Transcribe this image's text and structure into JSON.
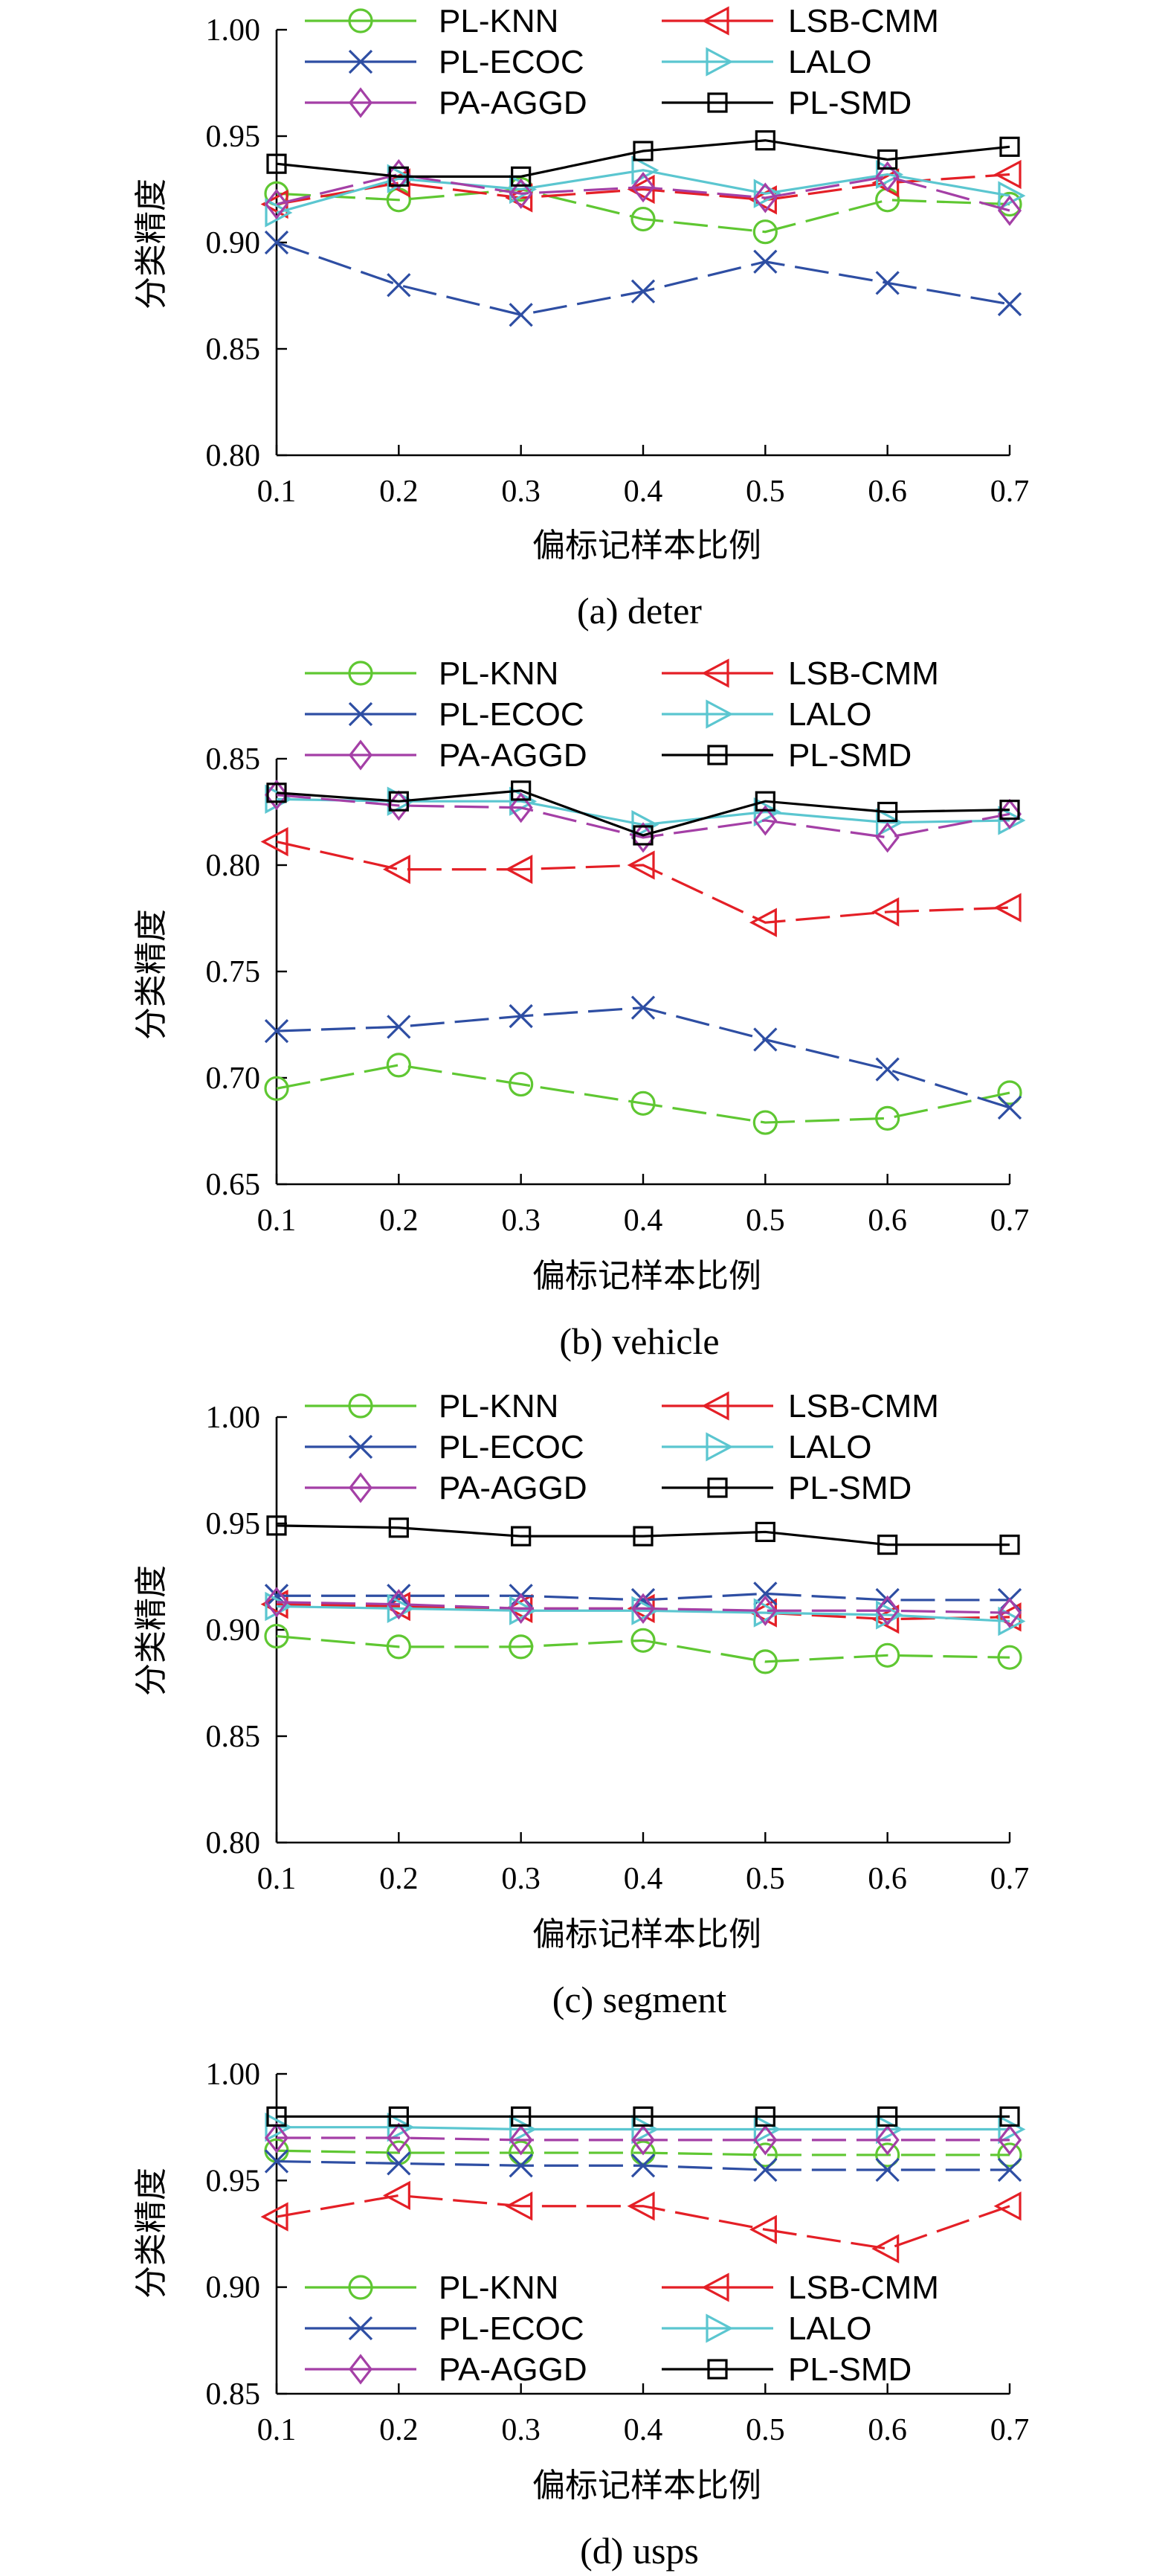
{
  "chart_data": [
    {
      "type": "line",
      "caption": "(a) deter",
      "xlabel": "偏标记样本比例",
      "ylabel": "分类精度",
      "x": [
        0.1,
        0.2,
        0.3,
        0.4,
        0.5,
        0.6,
        0.7
      ],
      "xticks": [
        "0.1",
        "0.2",
        "0.3",
        "0.4",
        "0.5",
        "0.6",
        "0.7"
      ],
      "xlim": [
        0.1,
        0.7
      ],
      "ylim": [
        0.8,
        1.0
      ],
      "yticks": [
        "0.80",
        "0.85",
        "0.90",
        "0.95",
        "1.00"
      ],
      "legend_position": "top",
      "series": [
        {
          "name": "PL-KNN",
          "color": "#5fc732",
          "marker": "circle",
          "dash": "long",
          "values": [
            0.923,
            0.92,
            0.925,
            0.911,
            0.905,
            0.92,
            0.918
          ]
        },
        {
          "name": "LSB-CMM",
          "color": "#e41f26",
          "marker": "triangle-left",
          "dash": "long",
          "values": [
            0.918,
            0.928,
            0.921,
            0.925,
            0.92,
            0.928,
            0.932
          ]
        },
        {
          "name": "PL-ECOC",
          "color": "#2e4ea3",
          "marker": "x",
          "dash": "long",
          "values": [
            0.9,
            0.88,
            0.866,
            0.877,
            0.891,
            0.881,
            0.871
          ]
        },
        {
          "name": "LALO",
          "color": "#5bc6d0",
          "marker": "triangle-right",
          "dash": "solid",
          "values": [
            0.914,
            0.93,
            0.925,
            0.934,
            0.923,
            0.932,
            0.922
          ]
        },
        {
          "name": "PA-AGGD",
          "color": "#a43fa6",
          "marker": "diamond",
          "dash": "long",
          "values": [
            0.918,
            0.932,
            0.923,
            0.926,
            0.921,
            0.931,
            0.915
          ]
        },
        {
          "name": "PL-SMD",
          "color": "#000000",
          "marker": "square",
          "dash": "solid",
          "values": [
            0.937,
            0.931,
            0.931,
            0.943,
            0.948,
            0.939,
            0.945
          ]
        }
      ]
    },
    {
      "type": "line",
      "caption": "(b) vehicle",
      "xlabel": "偏标记样本比例",
      "ylabel": "分类精度",
      "x": [
        0.1,
        0.2,
        0.3,
        0.4,
        0.5,
        0.6,
        0.7
      ],
      "xticks": [
        "0.1",
        "0.2",
        "0.3",
        "0.4",
        "0.5",
        "0.6",
        "0.7"
      ],
      "xlim": [
        0.1,
        0.7
      ],
      "ylim": [
        0.65,
        0.85
      ],
      "yticks": [
        "0.65",
        "0.70",
        "0.75",
        "0.80",
        "0.85"
      ],
      "legend_position": "top",
      "series": [
        {
          "name": "PL-KNN",
          "color": "#5fc732",
          "marker": "circle",
          "dash": "long",
          "values": [
            0.695,
            0.706,
            0.697,
            0.688,
            0.679,
            0.681,
            0.693
          ]
        },
        {
          "name": "LSB-CMM",
          "color": "#e41f26",
          "marker": "triangle-left",
          "dash": "long",
          "values": [
            0.811,
            0.798,
            0.798,
            0.8,
            0.773,
            0.778,
            0.78
          ]
        },
        {
          "name": "PL-ECOC",
          "color": "#2e4ea3",
          "marker": "x",
          "dash": "long",
          "values": [
            0.722,
            0.724,
            0.729,
            0.733,
            0.718,
            0.704,
            0.686
          ]
        },
        {
          "name": "LALO",
          "color": "#5bc6d0",
          "marker": "triangle-right",
          "dash": "solid",
          "values": [
            0.831,
            0.83,
            0.83,
            0.819,
            0.825,
            0.82,
            0.821
          ]
        },
        {
          "name": "PA-AGGD",
          "color": "#a43fa6",
          "marker": "diamond",
          "dash": "long",
          "values": [
            0.833,
            0.828,
            0.827,
            0.813,
            0.821,
            0.813,
            0.824
          ]
        },
        {
          "name": "PL-SMD",
          "color": "#000000",
          "marker": "square",
          "dash": "solid",
          "values": [
            0.834,
            0.83,
            0.835,
            0.814,
            0.83,
            0.825,
            0.826
          ]
        }
      ]
    },
    {
      "type": "line",
      "caption": "(c) segment",
      "xlabel": "偏标记样本比例",
      "ylabel": "分类精度",
      "x": [
        0.1,
        0.2,
        0.3,
        0.4,
        0.5,
        0.6,
        0.7
      ],
      "xticks": [
        "0.1",
        "0.2",
        "0.3",
        "0.4",
        "0.5",
        "0.6",
        "0.7"
      ],
      "xlim": [
        0.1,
        0.7
      ],
      "ylim": [
        0.8,
        1.0
      ],
      "yticks": [
        "0.80",
        "0.85",
        "0.90",
        "0.95",
        "1.00"
      ],
      "legend_position": "top",
      "series": [
        {
          "name": "PL-KNN",
          "color": "#5fc732",
          "marker": "circle",
          "dash": "long",
          "values": [
            0.897,
            0.892,
            0.892,
            0.895,
            0.885,
            0.888,
            0.887
          ]
        },
        {
          "name": "LSB-CMM",
          "color": "#e41f26",
          "marker": "triangle-left",
          "dash": "long",
          "values": [
            0.912,
            0.911,
            0.91,
            0.91,
            0.908,
            0.905,
            0.906
          ]
        },
        {
          "name": "PL-ECOC",
          "color": "#2e4ea3",
          "marker": "x",
          "dash": "long",
          "values": [
            0.916,
            0.916,
            0.916,
            0.914,
            0.917,
            0.914,
            0.914
          ]
        },
        {
          "name": "LALO",
          "color": "#5bc6d0",
          "marker": "triangle-right",
          "dash": "solid",
          "values": [
            0.911,
            0.91,
            0.909,
            0.909,
            0.908,
            0.907,
            0.904
          ]
        },
        {
          "name": "PA-AGGD",
          "color": "#a43fa6",
          "marker": "diamond",
          "dash": "long",
          "values": [
            0.913,
            0.912,
            0.91,
            0.91,
            0.909,
            0.909,
            0.908
          ]
        },
        {
          "name": "PL-SMD",
          "color": "#000000",
          "marker": "square",
          "dash": "solid",
          "values": [
            0.949,
            0.948,
            0.944,
            0.944,
            0.946,
            0.94,
            0.94
          ]
        }
      ]
    },
    {
      "type": "line",
      "caption": "(d) usps",
      "xlabel": "偏标记样本比例",
      "ylabel": "分类精度",
      "x": [
        0.1,
        0.2,
        0.3,
        0.4,
        0.5,
        0.6,
        0.7
      ],
      "xticks": [
        "0.1",
        "0.2",
        "0.3",
        "0.4",
        "0.5",
        "0.6",
        "0.7"
      ],
      "xlim": [
        0.1,
        0.7
      ],
      "ylim": [
        0.85,
        1.0
      ],
      "yticks": [
        "0.85",
        "0.90",
        "0.95",
        "1.00"
      ],
      "legend_position": "bottom",
      "series": [
        {
          "name": "PL-KNN",
          "color": "#5fc732",
          "marker": "circle",
          "dash": "long",
          "values": [
            0.964,
            0.963,
            0.963,
            0.963,
            0.962,
            0.962,
            0.962
          ]
        },
        {
          "name": "LSB-CMM",
          "color": "#e41f26",
          "marker": "triangle-left",
          "dash": "long",
          "values": [
            0.933,
            0.943,
            0.938,
            0.938,
            0.927,
            0.918,
            0.938
          ]
        },
        {
          "name": "PL-ECOC",
          "color": "#2e4ea3",
          "marker": "x",
          "dash": "long",
          "values": [
            0.959,
            0.958,
            0.957,
            0.957,
            0.955,
            0.955,
            0.955
          ]
        },
        {
          "name": "LALO",
          "color": "#5bc6d0",
          "marker": "triangle-right",
          "dash": "solid",
          "values": [
            0.975,
            0.975,
            0.974,
            0.974,
            0.974,
            0.974,
            0.974
          ]
        },
        {
          "name": "PA-AGGD",
          "color": "#a43fa6",
          "marker": "diamond",
          "dash": "long",
          "values": [
            0.97,
            0.97,
            0.969,
            0.969,
            0.969,
            0.969,
            0.969
          ]
        },
        {
          "name": "PL-SMD",
          "color": "#000000",
          "marker": "square",
          "dash": "solid",
          "values": [
            0.98,
            0.98,
            0.98,
            0.98,
            0.98,
            0.98,
            0.98
          ]
        }
      ]
    }
  ]
}
